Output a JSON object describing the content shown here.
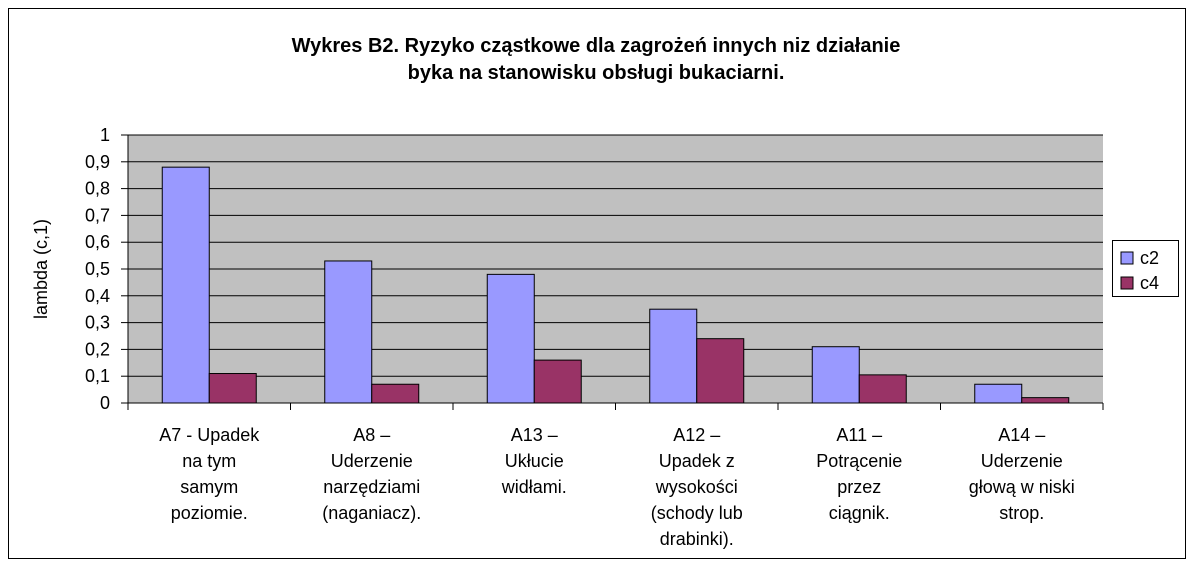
{
  "chart_data": {
    "type": "bar",
    "title": [
      "Wykres B2. Ryzyko cząstkowe dla zagrożeń innych niz działanie",
      "byka na stanowisku obsługi bukaciarni."
    ],
    "y_label": "lambda (c,1)",
    "categories": [
      [
        "A7 - Upadek",
        "na tym",
        "samym",
        "poziomie."
      ],
      [
        "A8 –",
        "Uderzenie",
        "narzędziami",
        "(naganiacz)."
      ],
      [
        "A13 –",
        "Ukłucie",
        "widłami."
      ],
      [
        "A12 –",
        "Upadek z",
        "wysokości",
        "(schody lub",
        "drabinki)."
      ],
      [
        "A11 –",
        "Potrącenie",
        "przez",
        "ciągnik."
      ],
      [
        "A14 –",
        "Uderzenie",
        "głową w niski",
        "strop."
      ]
    ],
    "series": [
      {
        "name": "c2",
        "color": "#9999ff",
        "values": [
          0.88,
          0.53,
          0.48,
          0.35,
          0.21,
          0.07
        ]
      },
      {
        "name": "c4",
        "color": "#993366",
        "values": [
          0.11,
          0.07,
          0.16,
          0.24,
          0.105,
          0.02
        ]
      }
    ],
    "ylim": [
      0,
      1
    ],
    "yticks": [
      0,
      {
        "value": 0.1,
        "label": "0,1"
      },
      {
        "value": 0.2,
        "label": "0,2"
      },
      {
        "value": 0.3,
        "label": "0,3"
      },
      {
        "value": 0.4,
        "label": "0,4"
      },
      {
        "value": 0.5,
        "label": "0,5"
      },
      {
        "value": 0.6,
        "label": "0,6"
      },
      {
        "value": 0.7,
        "label": "0,7"
      },
      {
        "value": 0.8,
        "label": "0,8"
      },
      {
        "value": 0.9,
        "label": "0,9"
      },
      1
    ],
    "grid": true,
    "plot_background": "#c0c0c0",
    "legend": "right"
  }
}
